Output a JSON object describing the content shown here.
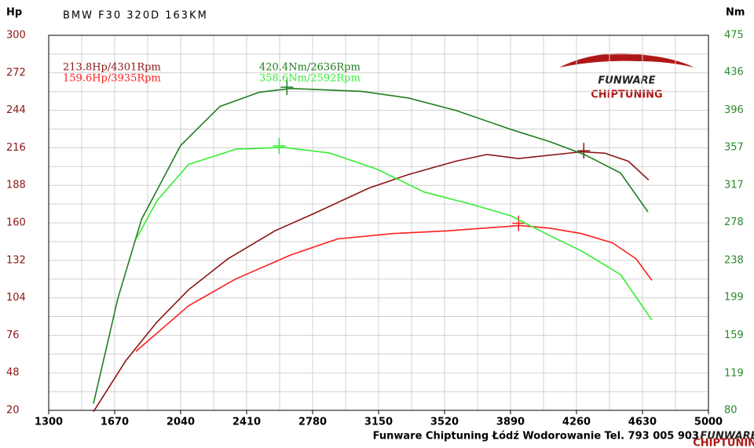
{
  "chart_data": {
    "type": "line",
    "title": "BMW F30 320D 163KM",
    "y_label": "Hp",
    "y2_label": "Nm",
    "footer": "Funware Chiptuning Łódź Wodorowanie Tel. 793 005 903",
    "logo": {
      "brand": "FUNWARE",
      "tagline": "CHIPTUNING"
    },
    "xlim": [
      1300,
      5000
    ],
    "xticks": [
      1300,
      1670,
      2040,
      2410,
      2780,
      3150,
      3520,
      3890,
      4260,
      4630,
      5000
    ],
    "ylim": [
      20,
      300
    ],
    "yticks": [
      20,
      48,
      76,
      104,
      132,
      160,
      188,
      216,
      244,
      272,
      300
    ],
    "y2lim": [
      80,
      475
    ],
    "y2ticks": [
      80,
      119,
      159,
      199,
      238,
      278,
      317,
      357,
      396,
      436,
      475
    ],
    "grid": true,
    "series": [
      {
        "name": "213.8Hp/4301Rpm",
        "color": "#8b1414",
        "axis": "y",
        "peak": [
          4301,
          213.8
        ],
        "x": [
          1551,
          1732,
          1908,
          2084,
          2304,
          2569,
          2789,
          3097,
          3317,
          3582,
          3758,
          3934,
          4287,
          4419,
          4551,
          4665
        ],
        "values": [
          19,
          57,
          86,
          110,
          133,
          154,
          167,
          186,
          196,
          206,
          211,
          208,
          213,
          212,
          206,
          192
        ]
      },
      {
        "name": "159.6Hp/3935Rpm",
        "color": "#ff1e1e",
        "axis": "y",
        "peak": [
          3935,
          159.6
        ],
        "x": [
          1789,
          2084,
          2348,
          2657,
          2921,
          3229,
          3538,
          3943,
          4110,
          4287,
          4463,
          4595,
          4683
        ],
        "values": [
          64,
          98,
          118,
          136,
          148,
          152,
          154,
          158,
          156,
          152,
          145,
          133,
          117
        ]
      },
      {
        "name": "420.4Nm/2636Rpm",
        "color": "#1f7d1f",
        "axis": "y2",
        "peak": [
          2636,
          420.4
        ],
        "x": [
          1551,
          1688,
          1820,
          2040,
          2260,
          2480,
          2657,
          3053,
          3317,
          3582,
          3890,
          4110,
          4309,
          4507,
          4661
        ],
        "values": [
          87,
          198,
          281,
          359,
          400,
          415,
          419,
          416,
          409,
          396,
          376,
          363,
          349,
          330,
          289
        ]
      },
      {
        "name": "358.6Nm/2592Rpm",
        "color": "#33ee33",
        "axis": "y2",
        "peak": [
          2592,
          358.6
        ],
        "x": [
          1789,
          1908,
          2084,
          2348,
          2613,
          2877,
          3141,
          3405,
          3670,
          3890,
          4110,
          4287,
          4507,
          4683
        ],
        "values": [
          260,
          301,
          339,
          355,
          357,
          351,
          334,
          310,
          297,
          285,
          264,
          248,
          223,
          175
        ]
      }
    ]
  }
}
